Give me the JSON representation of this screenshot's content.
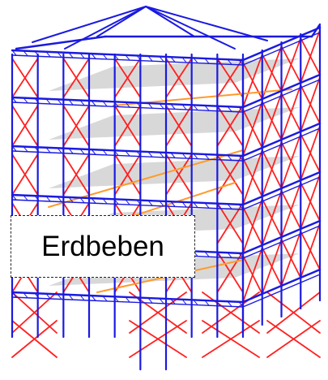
{
  "label": {
    "text": "Erdbeben"
  },
  "colors": {
    "frame": "#1a1ae0",
    "bracing": "#ff2020",
    "bracing_orange": "#ff9a2a",
    "slab": "#b8b8b8",
    "slab_dark": "#8c8c8c"
  },
  "illustration": {
    "subject": "steel-frame-building-structure",
    "slab_count": 5
  }
}
